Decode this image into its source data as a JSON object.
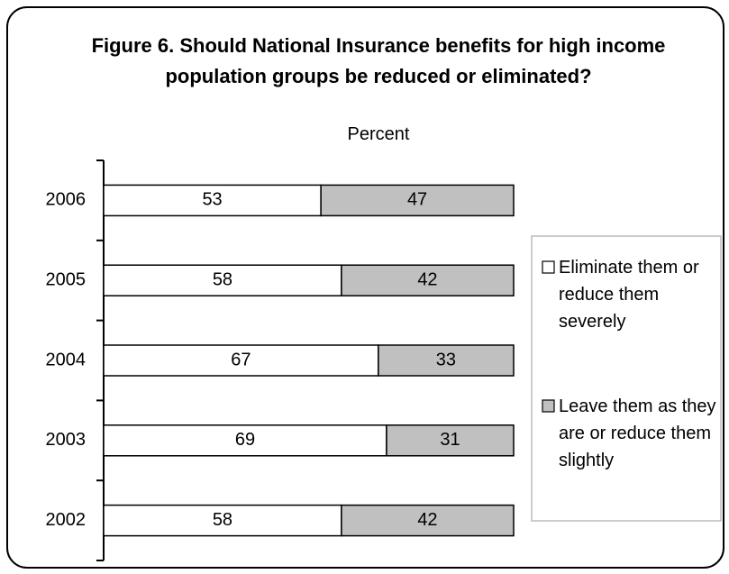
{
  "chart_data": {
    "type": "stacked-bar-horizontal",
    "title": "Figure 6. Should National Insurance benefits for high income population groups be reduced or eliminated?",
    "subtitle": "Percent",
    "categories": [
      "2006",
      "2005",
      "2004",
      "2003",
      "2002"
    ],
    "series": [
      {
        "name": "Eliminate them or reduce them severely",
        "color": "#ffffff",
        "values": [
          53,
          58,
          67,
          69,
          58
        ]
      },
      {
        "name": "Leave them as they are or reduce them slightly",
        "color": "#c0c0c0",
        "values": [
          47,
          42,
          33,
          31,
          42
        ]
      }
    ],
    "xlim": [
      0,
      100
    ],
    "legend": "right"
  }
}
